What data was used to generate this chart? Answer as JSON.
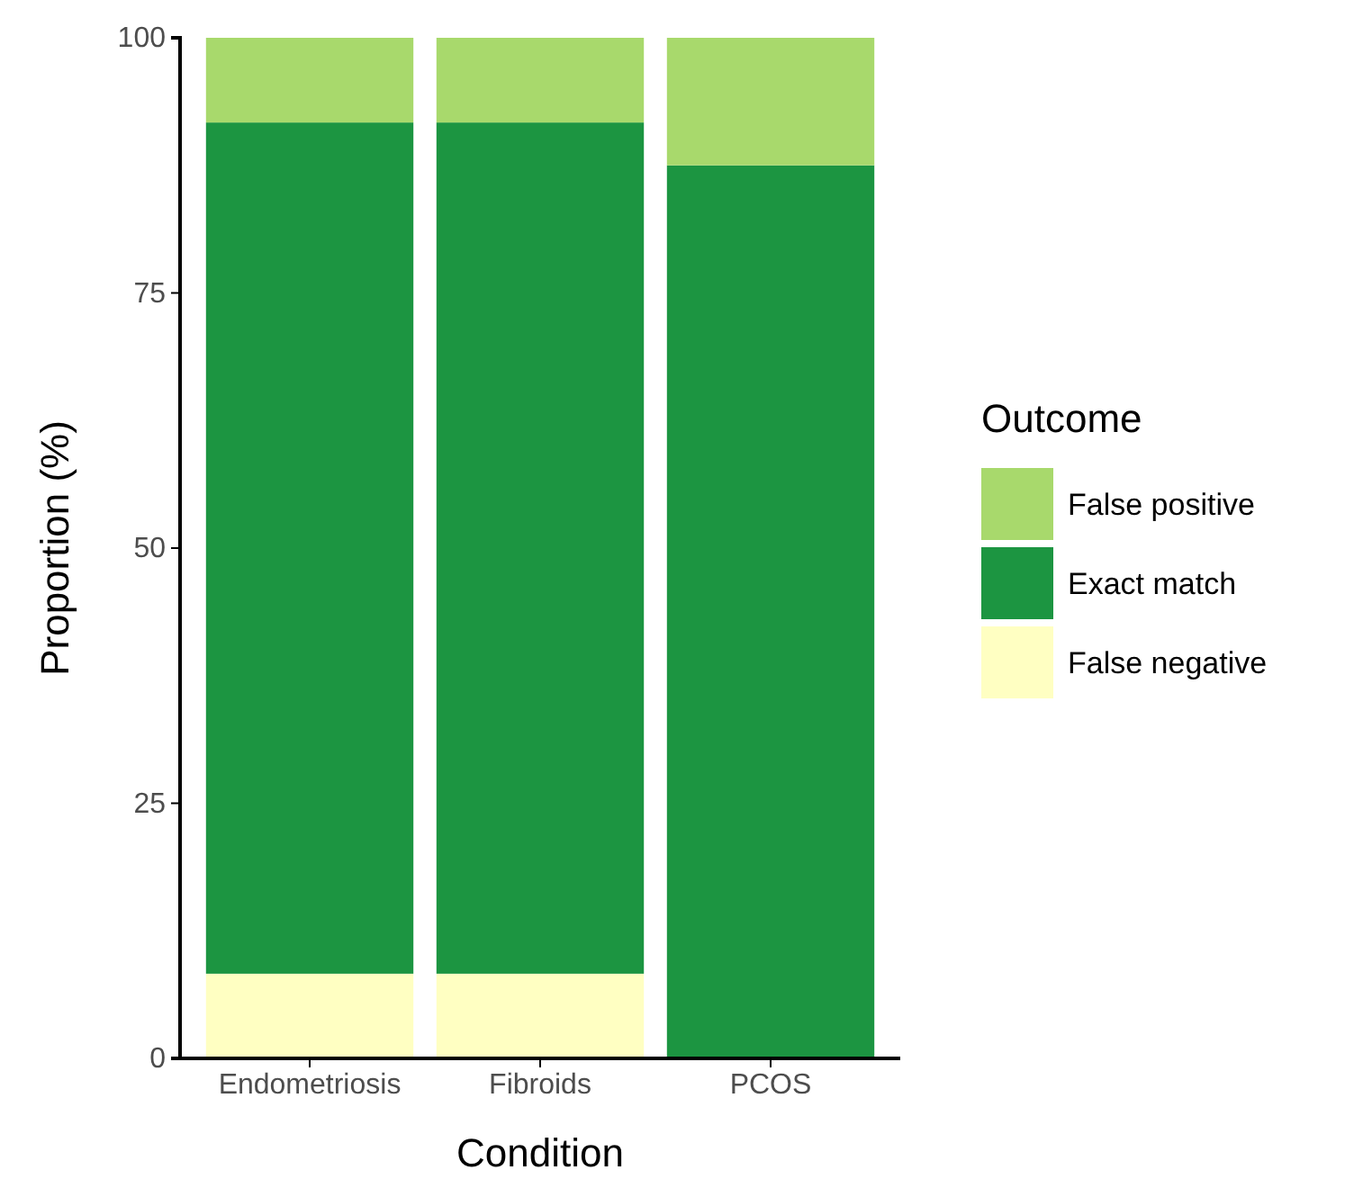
{
  "chart_data": {
    "type": "bar",
    "stacked": true,
    "xlabel": "Condition",
    "ylabel": "Proportion (%)",
    "legend_title": "Outcome",
    "legend": "right",
    "categories": [
      "Endometriosis",
      "Fibroids",
      "PCOS"
    ],
    "series": [
      {
        "name": "False negative",
        "color": "#ffffc2",
        "values": [
          8.3,
          8.3,
          0
        ]
      },
      {
        "name": "Exact match",
        "color": "#1c9541",
        "values": [
          83.4,
          83.4,
          87.5
        ]
      },
      {
        "name": "False positive",
        "color": "#a8d96c",
        "values": [
          8.3,
          8.3,
          12.5
        ]
      }
    ],
    "ylim": [
      0,
      100
    ],
    "yticks": [
      0,
      25,
      50,
      75,
      100
    ]
  }
}
